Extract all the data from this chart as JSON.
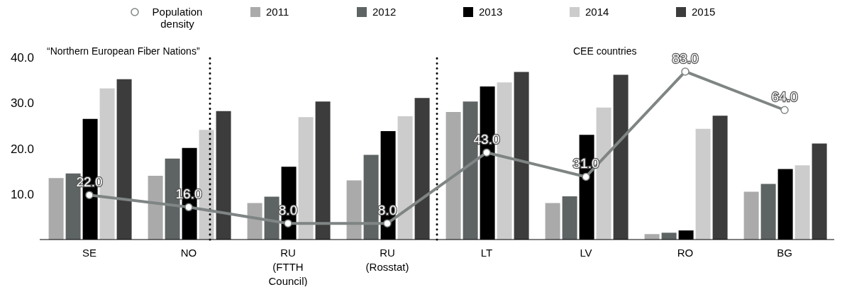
{
  "chart_data": {
    "type": "bar",
    "categories": [
      "SE",
      "NO",
      "RU (FTTH Council)",
      "RU (Rosstat)",
      "LT",
      "LV",
      "RO",
      "BG"
    ],
    "series": [
      {
        "name": "Population density",
        "type": "line",
        "axis": "y2",
        "color": "#7f8584",
        "values": [
          22,
          16,
          8,
          8,
          43,
          31,
          83,
          64
        ],
        "value_labels": [
          "22.0",
          "16.0",
          "8.0",
          "8.0",
          "43.0",
          "31.0",
          "83.0",
          "64.0"
        ]
      },
      {
        "name": "2011",
        "color": "#aaaaaa",
        "values": [
          13.5,
          14.0,
          8.0,
          13.0,
          28.0,
          8.0,
          1.2,
          10.5
        ]
      },
      {
        "name": "2012",
        "color": "#5e6464",
        "values": [
          14.5,
          17.8,
          9.4,
          18.6,
          30.3,
          9.5,
          1.5,
          12.2
        ]
      },
      {
        "name": "2013",
        "color": "#000000",
        "values": [
          26.5,
          20.1,
          16.0,
          23.8,
          33.6,
          23.0,
          2.0,
          15.5
        ]
      },
      {
        "name": "2014",
        "color": "#cccccc",
        "values": [
          33.2,
          24.1,
          26.9,
          27.1,
          34.5,
          29.0,
          24.3,
          16.3
        ]
      },
      {
        "name": "2015",
        "color": "#3c3c3c",
        "values": [
          35.2,
          28.2,
          30.3,
          31.1,
          36.8,
          36.2,
          27.2,
          21.1
        ]
      }
    ],
    "ylim": [
      0,
      40
    ],
    "yticks": [
      {
        "value": 10,
        "label": "10.0"
      },
      {
        "value": 20,
        "label": "20.0"
      },
      {
        "value": 30,
        "label": "30.0"
      },
      {
        "value": 40,
        "label": "40.0"
      }
    ],
    "y2lim": [
      0,
      90
    ],
    "annotations": [
      "“Northern European Fiber Nations”",
      "CEE countries"
    ],
    "legend": "top",
    "marker": "circle"
  }
}
